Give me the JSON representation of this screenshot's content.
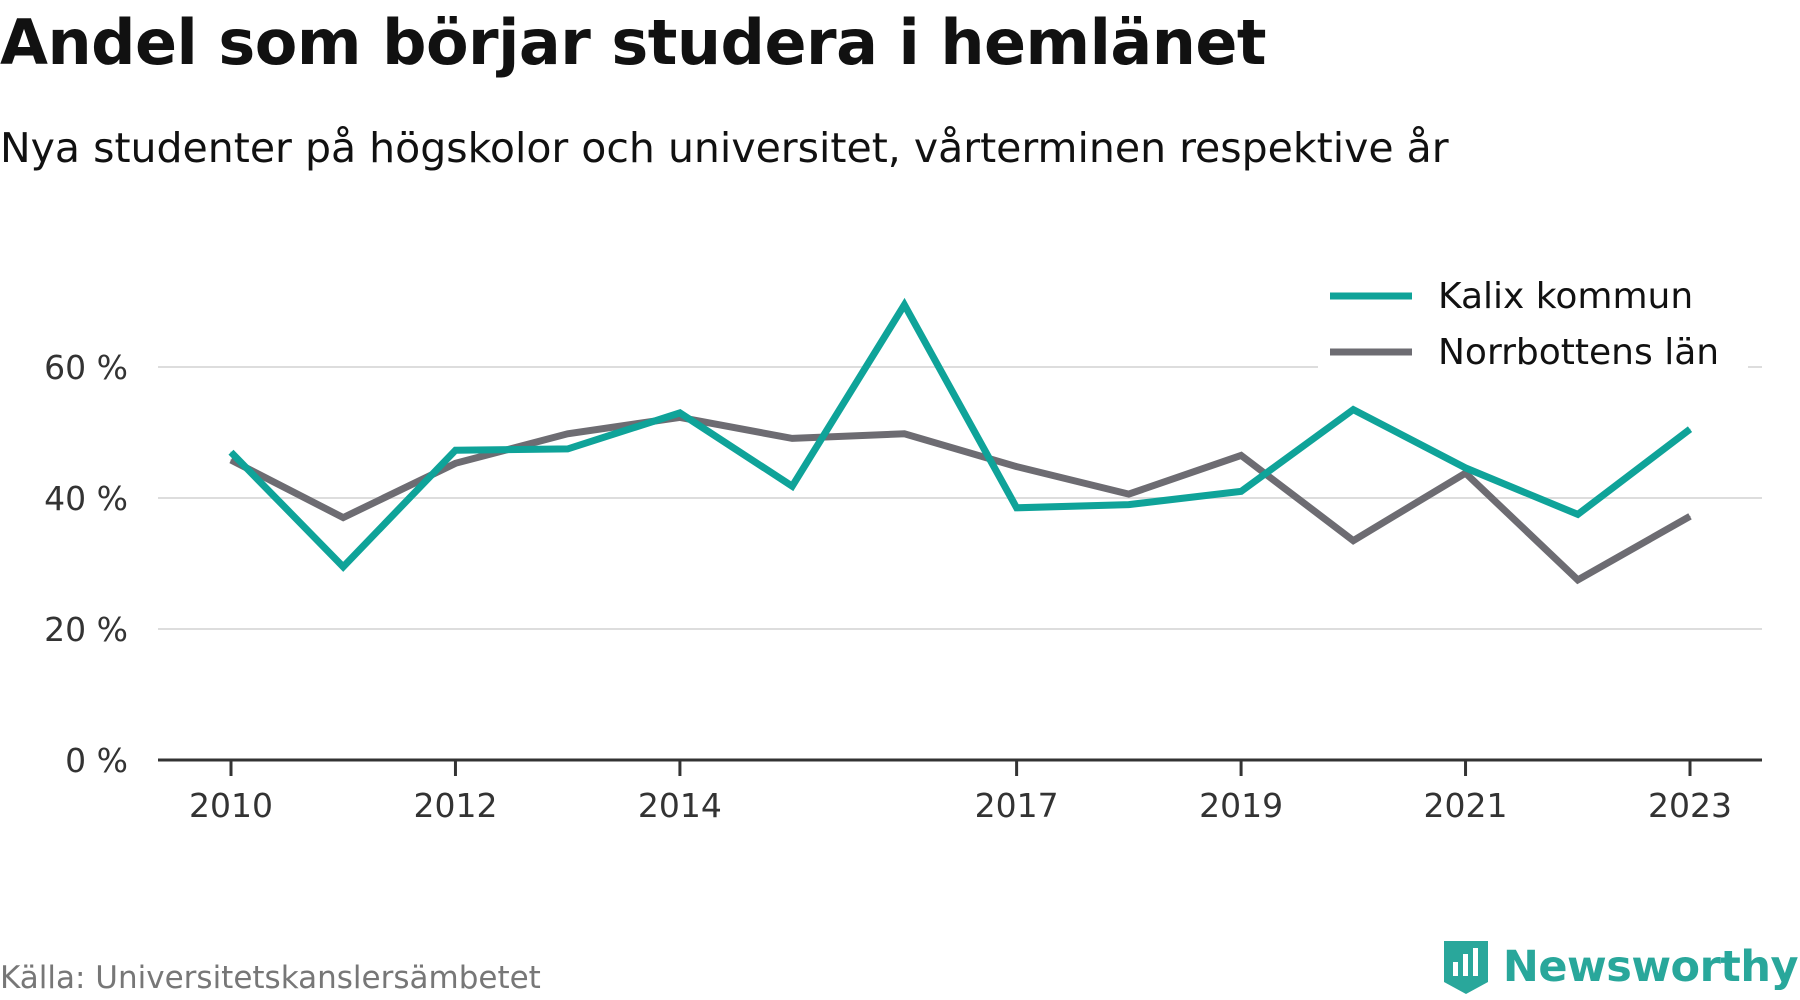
{
  "header": {
    "title": "Andel som börjar studera i hemlänet",
    "subtitle": "Nya studenter på högskolor och universitet, vårterminen respektive år"
  },
  "footer": {
    "source": "Källa: Universitetskanslersämbetet",
    "brand": "Newsworthy"
  },
  "colors": {
    "kalix": "#0fa399",
    "norrbotten": "#6d6c72",
    "grid": "#dddddd",
    "axis": "#333333",
    "brand": "#29a79b"
  },
  "chart_data": {
    "type": "line",
    "title": "Andel som börjar studera i hemlänet",
    "subtitle": "Nya studenter på högskolor och universitet, vårterminen respektive år",
    "x": [
      2010,
      2011,
      2012,
      2013,
      2014,
      2015,
      2016,
      2017,
      2018,
      2019,
      2020,
      2021,
      2022,
      2023
    ],
    "x_tick_labels": [
      "2010",
      "2012",
      "2014",
      "2017",
      "2019",
      "2021",
      "2023"
    ],
    "x_tick_values": [
      2010,
      2012,
      2014,
      2017,
      2019,
      2021,
      2023
    ],
    "y_tick_values": [
      0,
      20,
      40,
      60
    ],
    "y_tick_labels": [
      "0 %",
      "20 %",
      "40 %",
      "60 %"
    ],
    "ylim": [
      0,
      70
    ],
    "grid": true,
    "legend_position": "top-right",
    "series": [
      {
        "name": "Kalix kommun",
        "color": "#0fa399",
        "values": [
          47,
          29.5,
          47.3,
          47.5,
          53,
          41.8,
          69.5,
          38.5,
          39,
          41,
          53.5,
          44.6,
          37.5,
          50.5
        ]
      },
      {
        "name": "Norrbottens län",
        "color": "#6d6c72",
        "values": [
          45.8,
          37,
          45.3,
          49.8,
          52.3,
          49.1,
          49.8,
          44.8,
          40.6,
          46.5,
          33.5,
          43.8,
          27.5,
          37.2
        ]
      }
    ]
  }
}
